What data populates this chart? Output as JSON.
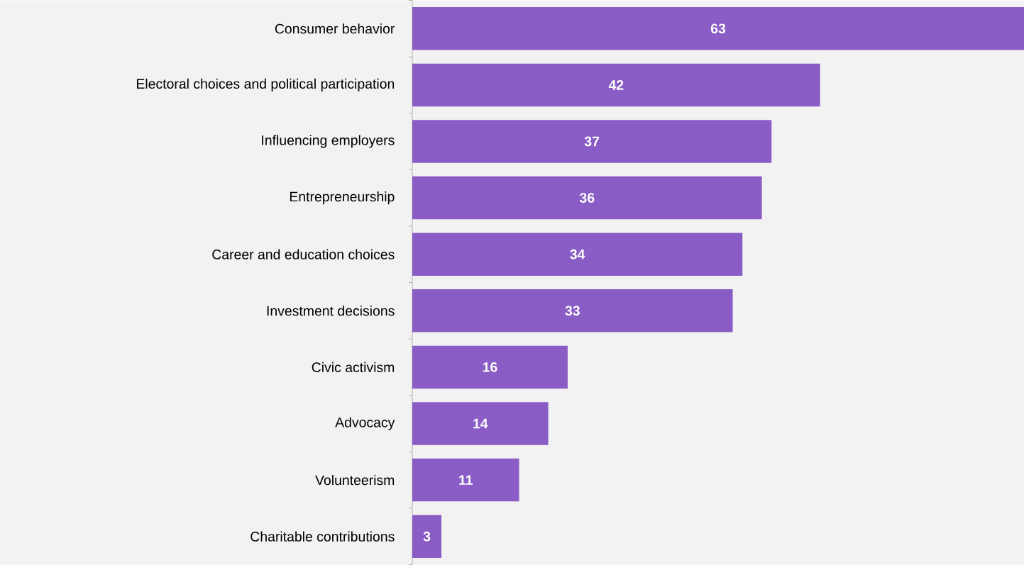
{
  "chart_data": {
    "type": "bar",
    "orientation": "horizontal",
    "categories": [
      "Consumer behavior",
      "Electoral choices and political participation",
      "Influencing employers",
      "Entrepreneurship",
      "Career and education choices",
      "Investment decisions",
      "Civic activism",
      "Advocacy",
      "Volunteerism",
      "Charitable contributions"
    ],
    "values": [
      63,
      42,
      37,
      36,
      34,
      33,
      16,
      14,
      11,
      3
    ],
    "color": "#8a5cc5",
    "data_labels": true
  }
}
